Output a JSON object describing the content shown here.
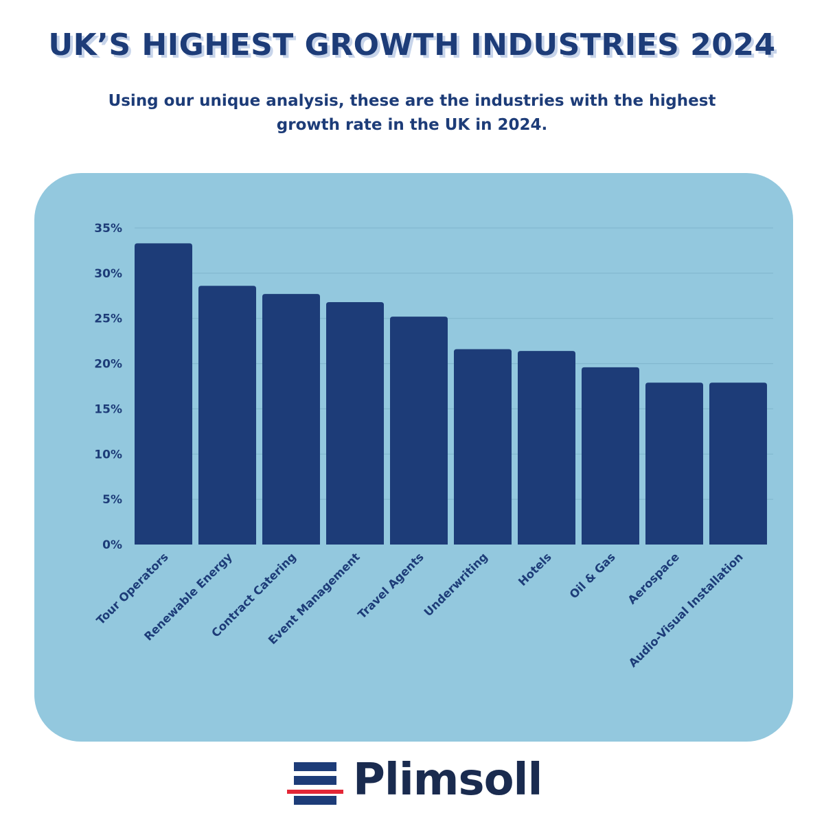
{
  "header": {
    "title": "UK’S HIGHEST GROWTH INDUSTRIES 2024",
    "subtitle": "Using our unique analysis, these are the industries with the highest growth rate in the UK in 2024."
  },
  "brand": {
    "name": "Plimsoll",
    "logo_icon": "plimsoll-line-icon"
  },
  "colors": {
    "title": "#1d3c78",
    "bar": "#1d3c78",
    "panel_background": "#93c8de",
    "gridline": "#7fb5cc",
    "logo_red": "#e32636",
    "logo_text": "#1a2b4f"
  },
  "chart_data": {
    "type": "bar",
    "title": "",
    "xlabel": "",
    "ylabel": "",
    "ylim": [
      0,
      35
    ],
    "yticks": [
      0,
      5,
      10,
      15,
      20,
      25,
      30,
      35
    ],
    "ytick_labels": [
      "0%",
      "5%",
      "10%",
      "15%",
      "20%",
      "25%",
      "30%",
      "35%"
    ],
    "grid": true,
    "categories": [
      "Tour Operators",
      "Renewable Energy",
      "Contract Catering",
      "Event Management",
      "Travel Agents",
      "Underwriting",
      "Hotels",
      "Oil & Gas",
      "Aerospace",
      "Audio-Visual Installation"
    ],
    "values": [
      33.3,
      28.6,
      27.7,
      26.8,
      25.2,
      21.6,
      21.4,
      19.6,
      17.9,
      17.9
    ],
    "units": "%"
  }
}
